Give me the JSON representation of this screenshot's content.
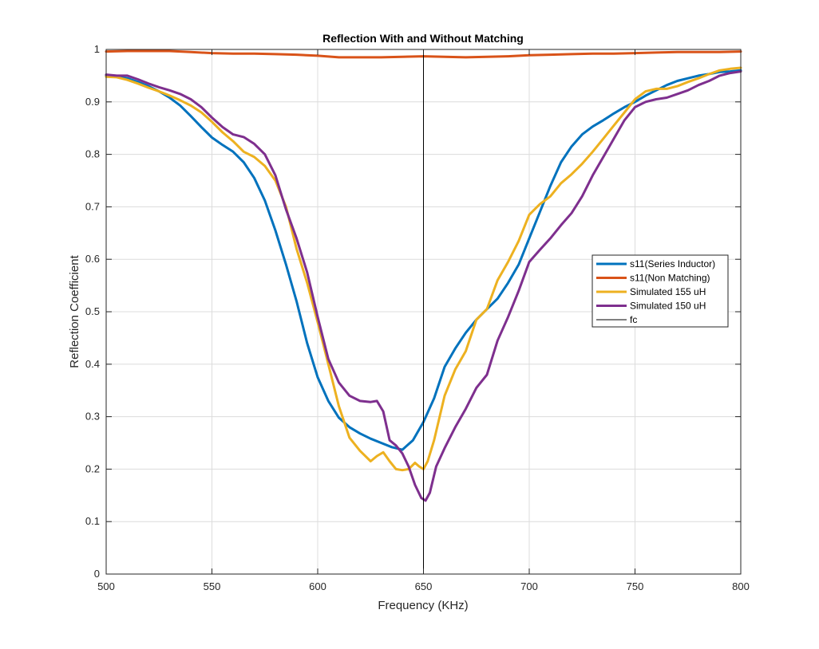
{
  "chart_data": {
    "type": "line",
    "title": "Reflection With and Without Matching",
    "xlabel": "Frequency (KHz)",
    "ylabel": "Reflection Coefficient",
    "xlim": [
      500,
      800
    ],
    "ylim": [
      0,
      1
    ],
    "xticks": [
      500,
      550,
      600,
      650,
      700,
      750,
      800
    ],
    "yticks": [
      0,
      0.1,
      0.2,
      0.3,
      0.4,
      0.5,
      0.6,
      0.7,
      0.8,
      0.9,
      1
    ],
    "grid": true,
    "legend_position": "right",
    "vertical_line": {
      "name": "fc",
      "x": 650,
      "color": "#000000"
    },
    "series": [
      {
        "name": "s11(Series Inductor)",
        "color": "#0072BD",
        "x": [
          500,
          505,
          510,
          515,
          520,
          525,
          530,
          535,
          540,
          545,
          550,
          555,
          560,
          565,
          570,
          575,
          580,
          585,
          590,
          595,
          600,
          605,
          610,
          615,
          620,
          625,
          630,
          635,
          640,
          645,
          650,
          655,
          660,
          665,
          670,
          675,
          680,
          685,
          690,
          695,
          700,
          705,
          710,
          715,
          720,
          725,
          730,
          735,
          740,
          745,
          750,
          755,
          760,
          765,
          770,
          775,
          780,
          785,
          790,
          795,
          800
        ],
        "y": [
          0.95,
          0.948,
          0.945,
          0.938,
          0.93,
          0.92,
          0.908,
          0.893,
          0.873,
          0.852,
          0.832,
          0.818,
          0.805,
          0.785,
          0.755,
          0.712,
          0.655,
          0.59,
          0.52,
          0.44,
          0.375,
          0.33,
          0.298,
          0.28,
          0.268,
          0.258,
          0.25,
          0.242,
          0.237,
          0.255,
          0.29,
          0.335,
          0.395,
          0.43,
          0.46,
          0.485,
          0.505,
          0.525,
          0.555,
          0.59,
          0.64,
          0.69,
          0.74,
          0.785,
          0.815,
          0.838,
          0.853,
          0.865,
          0.878,
          0.89,
          0.9,
          0.912,
          0.922,
          0.932,
          0.94,
          0.945,
          0.95,
          0.953,
          0.957,
          0.958,
          0.96
        ]
      },
      {
        "name": "s11(Non Matching)",
        "color": "#D95319",
        "x": [
          500,
          510,
          520,
          530,
          540,
          550,
          560,
          570,
          580,
          590,
          600,
          610,
          620,
          630,
          640,
          650,
          660,
          670,
          680,
          690,
          700,
          710,
          720,
          730,
          740,
          750,
          760,
          770,
          780,
          790,
          800
        ],
        "y": [
          0.996,
          0.997,
          0.997,
          0.997,
          0.995,
          0.993,
          0.992,
          0.992,
          0.991,
          0.99,
          0.988,
          0.985,
          0.985,
          0.985,
          0.986,
          0.987,
          0.986,
          0.985,
          0.986,
          0.987,
          0.989,
          0.99,
          0.991,
          0.992,
          0.992,
          0.993,
          0.994,
          0.995,
          0.995,
          0.995,
          0.996
        ]
      },
      {
        "name": "Simulated 155 uH",
        "color": "#EDB120",
        "x": [
          500,
          505,
          510,
          515,
          520,
          525,
          530,
          535,
          540,
          545,
          550,
          555,
          560,
          565,
          570,
          575,
          580,
          585,
          590,
          595,
          600,
          605,
          610,
          615,
          620,
          625,
          628,
          631,
          634,
          637,
          640,
          643,
          646,
          648,
          650,
          652,
          655,
          660,
          665,
          670,
          675,
          680,
          685,
          690,
          695,
          700,
          705,
          710,
          715,
          720,
          725,
          730,
          735,
          740,
          745,
          750,
          755,
          760,
          765,
          770,
          775,
          780,
          785,
          790,
          795,
          800
        ],
        "y": [
          0.948,
          0.947,
          0.942,
          0.935,
          0.927,
          0.92,
          0.912,
          0.903,
          0.893,
          0.88,
          0.862,
          0.842,
          0.825,
          0.805,
          0.795,
          0.778,
          0.75,
          0.7,
          0.62,
          0.555,
          0.48,
          0.4,
          0.32,
          0.26,
          0.235,
          0.215,
          0.225,
          0.232,
          0.215,
          0.2,
          0.198,
          0.2,
          0.212,
          0.205,
          0.2,
          0.215,
          0.255,
          0.34,
          0.39,
          0.425,
          0.485,
          0.505,
          0.56,
          0.595,
          0.635,
          0.685,
          0.705,
          0.72,
          0.745,
          0.762,
          0.782,
          0.805,
          0.83,
          0.855,
          0.88,
          0.905,
          0.92,
          0.925,
          0.925,
          0.93,
          0.938,
          0.945,
          0.953,
          0.96,
          0.963,
          0.965
        ]
      },
      {
        "name": "Simulated 150 uH",
        "color": "#7E2F8E",
        "x": [
          500,
          505,
          510,
          515,
          520,
          525,
          530,
          535,
          540,
          545,
          550,
          555,
          560,
          565,
          570,
          575,
          580,
          585,
          590,
          595,
          600,
          605,
          610,
          615,
          620,
          625,
          628,
          631,
          634,
          637,
          640,
          643,
          646,
          649,
          651,
          653,
          656,
          660,
          665,
          670,
          675,
          680,
          685,
          690,
          695,
          700,
          705,
          710,
          715,
          720,
          725,
          730,
          735,
          740,
          745,
          750,
          755,
          760,
          765,
          770,
          775,
          780,
          785,
          790,
          795,
          800
        ],
        "y": [
          0.952,
          0.95,
          0.95,
          0.943,
          0.935,
          0.928,
          0.922,
          0.915,
          0.905,
          0.89,
          0.87,
          0.852,
          0.838,
          0.833,
          0.82,
          0.8,
          0.76,
          0.695,
          0.64,
          0.575,
          0.49,
          0.41,
          0.365,
          0.34,
          0.33,
          0.328,
          0.33,
          0.31,
          0.255,
          0.245,
          0.23,
          0.205,
          0.17,
          0.145,
          0.14,
          0.155,
          0.205,
          0.24,
          0.28,
          0.315,
          0.355,
          0.38,
          0.445,
          0.49,
          0.54,
          0.595,
          0.618,
          0.64,
          0.665,
          0.688,
          0.72,
          0.76,
          0.795,
          0.83,
          0.865,
          0.89,
          0.9,
          0.905,
          0.908,
          0.915,
          0.922,
          0.932,
          0.94,
          0.95,
          0.955,
          0.958
        ]
      }
    ]
  }
}
